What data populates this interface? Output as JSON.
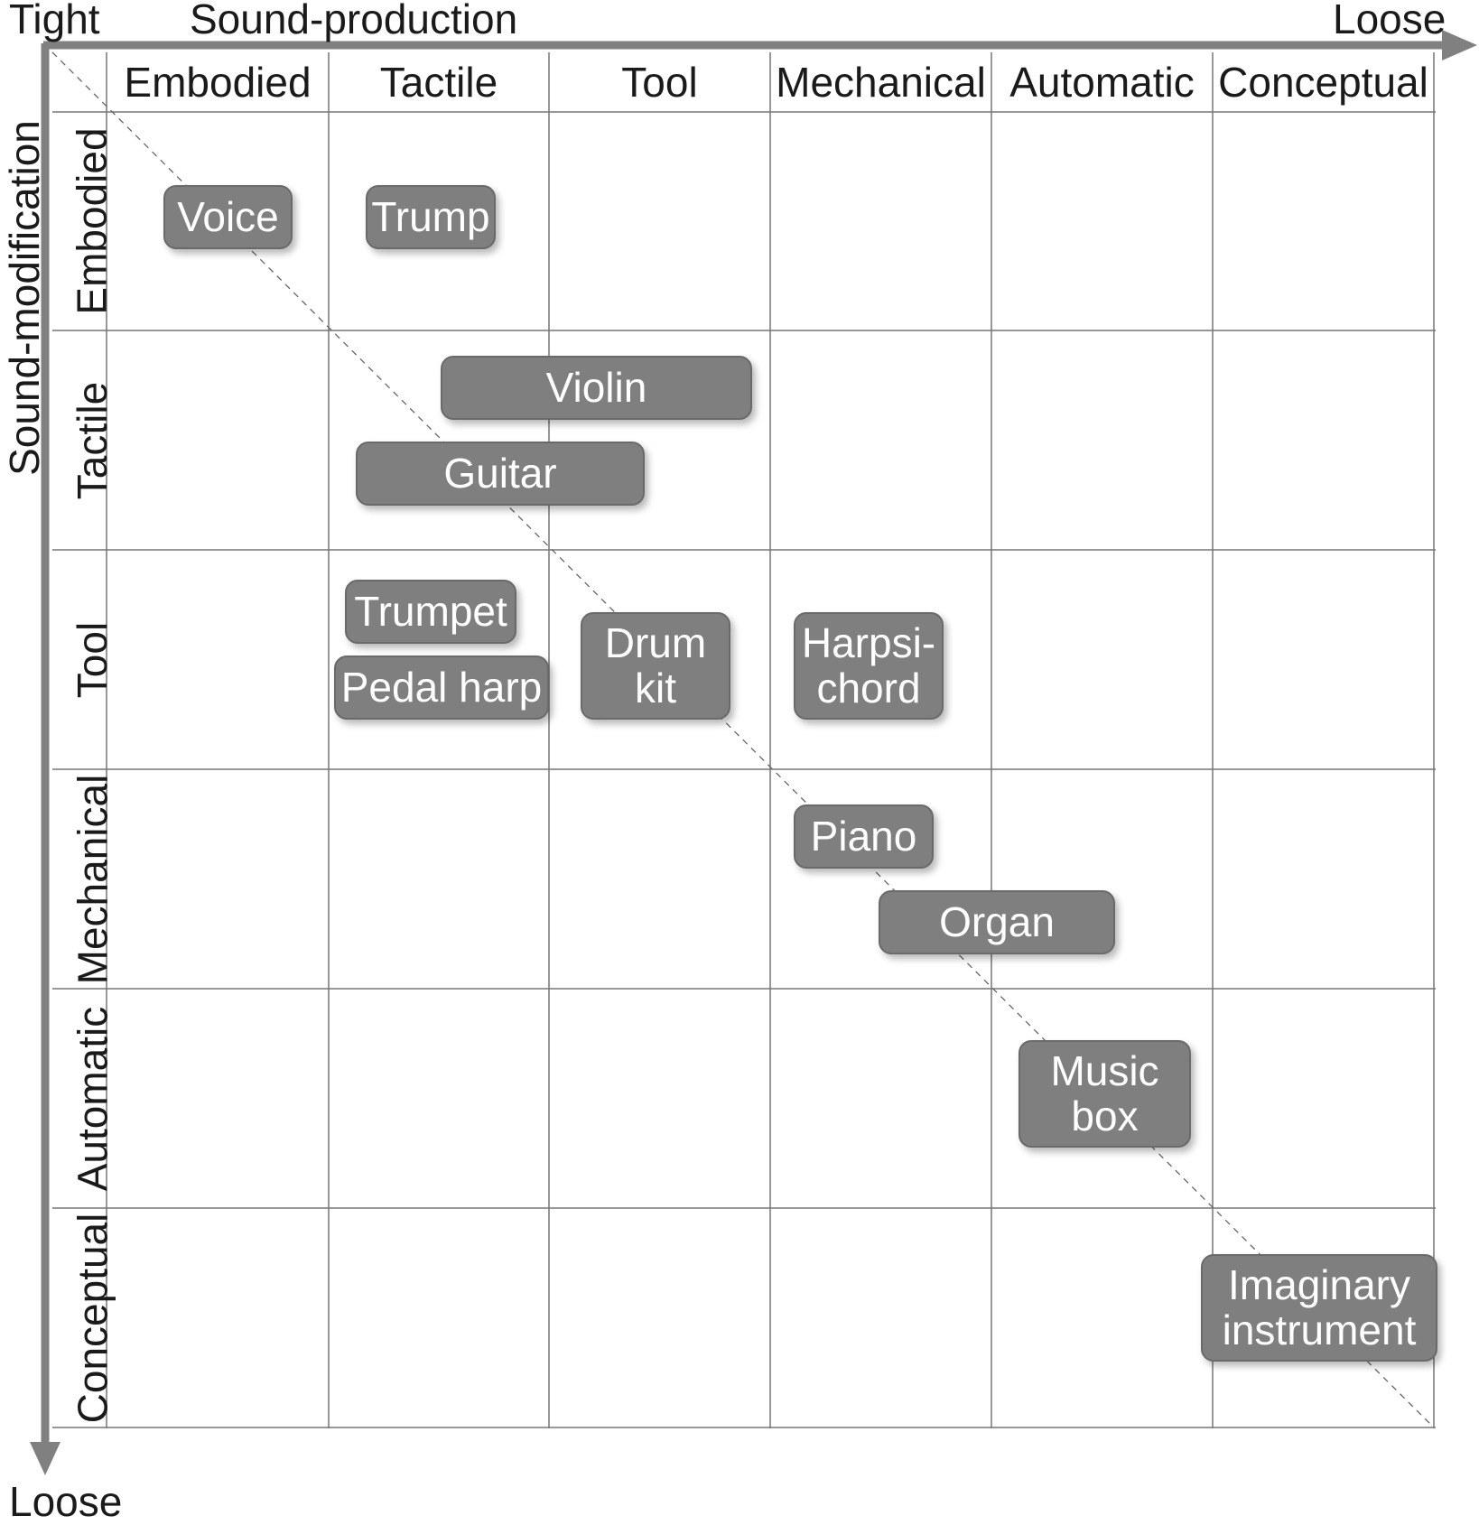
{
  "axes": {
    "top_left_label": "Tight",
    "top_title": "Sound-production",
    "top_right_label": "Loose",
    "left_title": "Sound-modification",
    "bottom_left_label": "Loose",
    "line_color": "#808080"
  },
  "columns": [
    "Embodied",
    "Tactile",
    "Tool",
    "Mechanical",
    "Automatic",
    "Conceptual"
  ],
  "rows": [
    "Embodied",
    "Tactile",
    "Tool",
    "Mechanical",
    "Automatic",
    "Conceptual"
  ],
  "instruments": [
    {
      "id": "voice",
      "label": "Voice"
    },
    {
      "id": "trump",
      "label": "Trump"
    },
    {
      "id": "violin",
      "label": "Violin"
    },
    {
      "id": "guitar",
      "label": "Guitar"
    },
    {
      "id": "trumpet",
      "label": "Trumpet"
    },
    {
      "id": "pedal-harp",
      "label": "Pedal harp"
    },
    {
      "id": "drum-kit",
      "label": "Drum\nkit"
    },
    {
      "id": "harpsichord",
      "label": "Harpsi-\nchord"
    },
    {
      "id": "piano",
      "label": "Piano"
    },
    {
      "id": "organ",
      "label": "Organ"
    },
    {
      "id": "music-box",
      "label": "Music\nbox"
    },
    {
      "id": "imaginary-instrument",
      "label": "Imaginary\ninstrument"
    }
  ],
  "colors": {
    "box_fill": "#7f7f7f",
    "box_text": "#ffffff",
    "grid": "#777777"
  }
}
